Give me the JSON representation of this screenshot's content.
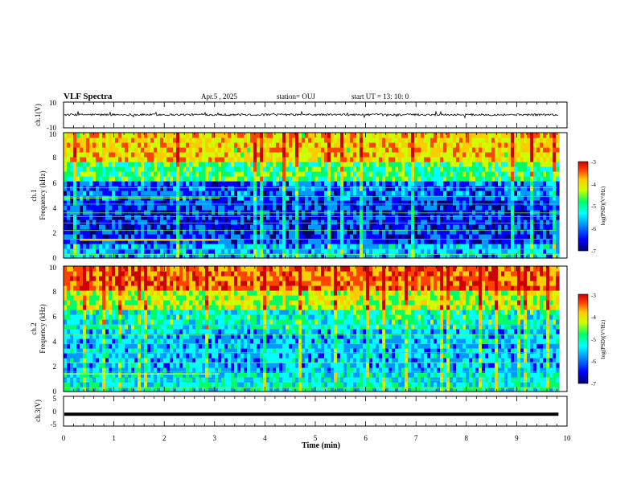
{
  "header": {
    "title": "VLF Spectra",
    "date": "Apr.5 , 2025",
    "station": "station= OUJ",
    "start": "start UT = 13: 10: 0"
  },
  "chart_data": [
    {
      "type": "line",
      "name": "ch1-waveform",
      "ylabel": "ch.1(V)",
      "ylim": [
        -10,
        10
      ],
      "yticks": [
        "10",
        "-10"
      ],
      "xlim": [
        0,
        10
      ],
      "trace_level": 0.2,
      "trace_color": "#000000"
    },
    {
      "type": "heatmap",
      "name": "ch1-spectrogram",
      "ylabel": "ch.1\nFrequency (kHz)",
      "ylim": [
        0,
        10
      ],
      "yticks": [
        "0",
        "2",
        "4",
        "6",
        "8",
        "10"
      ],
      "xlim": [
        0,
        10
      ],
      "data_end_min": 9.8,
      "colorbar": {
        "label": "log(PSD)(V²/Hz)",
        "range": [
          -7,
          -3
        ],
        "ticks": [
          "-3",
          "-4",
          "-5",
          "-6",
          "-7"
        ]
      }
    },
    {
      "type": "heatmap",
      "name": "ch2-spectrogram",
      "ylabel": "ch.2\nFrequency (kHz)",
      "ylim": [
        0,
        10
      ],
      "yticks": [
        "0",
        "2",
        "4",
        "6",
        "8",
        "10"
      ],
      "xlim": [
        0,
        10
      ],
      "data_end_min": 9.8,
      "colorbar": {
        "label": "log(PSD)(V²/Hz)",
        "range": [
          -7,
          -3
        ],
        "ticks": [
          "-3",
          "-4",
          "-5",
          "-6",
          "-7"
        ]
      }
    },
    {
      "type": "line",
      "name": "ch3-waveform",
      "ylabel": "ch.3(V)",
      "ylim": [
        -5,
        5
      ],
      "yticks": [
        "5",
        "0",
        "-5"
      ],
      "xlim": [
        0,
        10
      ],
      "trace_level": -1.0,
      "trace_color": "#000000"
    }
  ],
  "xaxis": {
    "label": "Time (min)",
    "ticks": [
      "0",
      "1",
      "2",
      "3",
      "4",
      "5",
      "6",
      "7",
      "8",
      "9",
      "10"
    ]
  },
  "colormap": [
    "#00006e",
    "#0000ff",
    "#0099ff",
    "#00ffff",
    "#00ff66",
    "#ccff00",
    "#ffcc00",
    "#ff4400",
    "#cc0000"
  ]
}
